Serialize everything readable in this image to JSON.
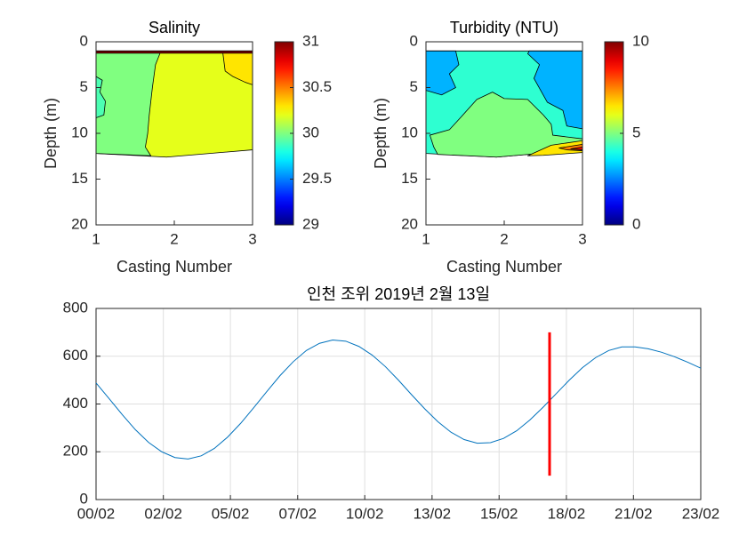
{
  "chart_data": [
    {
      "type": "contour",
      "title": "Salinity",
      "xlabel": "Casting Number",
      "ylabel": "Depth (m)",
      "xlim": [
        1,
        3
      ],
      "ylim": [
        0,
        20
      ],
      "xticks": [
        1,
        2,
        3
      ],
      "yticks": [
        0,
        5,
        10,
        15,
        20
      ],
      "y_reversed": true,
      "colormap": "jet",
      "clim": [
        29,
        31
      ],
      "colorbar_ticks": [
        29,
        29.5,
        30,
        30.5,
        31
      ],
      "regions": [
        {
          "level": 30.2,
          "x": [
            1,
            3,
            3,
            1.9,
            1
          ],
          "y": [
            1,
            1,
            11.8,
            12.6,
            12.2
          ]
        },
        {
          "level": 30,
          "x": [
            1,
            1.82,
            1.76,
            1.72,
            1.68,
            1.66,
            1.63,
            1.7,
            1
          ],
          "y": [
            1.2,
            1.2,
            2.5,
            5,
            8,
            10,
            11.5,
            12.45,
            12.2
          ]
        },
        {
          "level": 29.9,
          "x": [
            1,
            1.08,
            1.05,
            1.12,
            1.1,
            1
          ],
          "y": [
            3.8,
            4.2,
            5.5,
            6.5,
            8,
            8.3
          ]
        },
        {
          "level": 30.3,
          "x": [
            2.62,
            3,
            3,
            2.9,
            2.75,
            2.65
          ],
          "y": [
            1.2,
            1.2,
            4.7,
            4.4,
            3.8,
            3.2
          ]
        },
        {
          "level": 31,
          "x": [
            1,
            3,
            3,
            1
          ],
          "y": [
            1,
            1,
            1.25,
            1.25
          ]
        }
      ]
    },
    {
      "type": "contour",
      "title": "Turbidity (NTU)",
      "xlabel": "Casting Number",
      "ylabel": "Depth (m)",
      "xlim": [
        1,
        3
      ],
      "ylim": [
        0,
        20
      ],
      "xticks": [
        1,
        2,
        3
      ],
      "yticks": [
        0,
        5,
        10,
        15,
        20
      ],
      "y_reversed": true,
      "colormap": "jet",
      "clim": [
        0,
        10
      ],
      "colorbar_ticks": [
        0,
        5,
        10
      ],
      "regions": [
        {
          "level": 4.2,
          "x": [
            1,
            3,
            3,
            1.9,
            1
          ],
          "y": [
            1,
            1,
            11.8,
            12.6,
            12.2
          ]
        },
        {
          "level": 3,
          "x": [
            1,
            1.38,
            1.42,
            1.3,
            1.38,
            1.2,
            1
          ],
          "y": [
            1,
            1,
            2.5,
            3.5,
            5,
            5.8,
            5.3
          ]
        },
        {
          "level": 3,
          "x": [
            2.32,
            3,
            3,
            2.8,
            2.75,
            2.55,
            2.38,
            2.45,
            2.3
          ],
          "y": [
            1,
            1,
            9.5,
            9.2,
            7.5,
            6.6,
            4,
            2.5,
            1.3
          ]
        },
        {
          "level": 5,
          "x": [
            1.15,
            1.1,
            1.05,
            1.3,
            1.45,
            1.65,
            1.85,
            2,
            2.3,
            2.5,
            2.6,
            2.62,
            3,
            3,
            1.9
          ],
          "y": [
            12.3,
            11.5,
            10.2,
            9.6,
            8.2,
            6.3,
            5.5,
            6.2,
            6.3,
            8,
            9,
            10.2,
            10.6,
            11.8,
            12.6
          ]
        },
        {
          "level": 6.5,
          "x": [
            2.3,
            2.6,
            3,
            3,
            2.5
          ],
          "y": [
            12.45,
            11.3,
            10.8,
            12.1,
            12.4
          ]
        },
        {
          "level": 7.5,
          "x": [
            2.7,
            3,
            3,
            2.8
          ],
          "y": [
            11.6,
            11.2,
            11.9,
            11.8
          ]
        },
        {
          "level": 8.7,
          "x": [
            2.85,
            3,
            3
          ],
          "y": [
            11.7,
            11.5,
            11.8
          ]
        }
      ]
    },
    {
      "type": "line",
      "title": "인천 조위 2019년 2월 13일",
      "xlim": [
        0,
        23
      ],
      "ylim": [
        0,
        800
      ],
      "grid": true,
      "xticks": [
        {
          "value": 0,
          "label": "00/02"
        },
        {
          "value": 2.56,
          "label": "02/02"
        },
        {
          "value": 5.11,
          "label": "05/02"
        },
        {
          "value": 7.67,
          "label": "07/02"
        },
        {
          "value": 10.22,
          "label": "10/02"
        },
        {
          "value": 12.78,
          "label": "13/02"
        },
        {
          "value": 15.33,
          "label": "15/02"
        },
        {
          "value": 17.89,
          "label": "18/02"
        },
        {
          "value": 20.44,
          "label": "21/02"
        },
        {
          "value": 23,
          "label": "23/02"
        }
      ],
      "yticks": [
        0,
        200,
        400,
        600,
        800
      ],
      "series": [
        {
          "color": "#0072bd",
          "x": [
            0,
            0.5,
            1,
            1.5,
            2,
            2.5,
            3,
            3.5,
            4,
            4.5,
            5,
            5.5,
            6,
            6.5,
            7,
            7.5,
            8,
            8.5,
            9,
            9.5,
            10,
            10.5,
            11,
            11.5,
            12,
            12.5,
            13,
            13.5,
            14,
            14.5,
            15,
            15.5,
            16,
            16.5,
            17,
            17.5,
            18,
            18.5,
            19,
            19.5,
            20,
            20.5,
            21,
            21.5,
            22,
            22.5,
            23
          ],
          "values": [
            488,
            422,
            355,
            292,
            239,
            200,
            176,
            170,
            183,
            214,
            261,
            319,
            385,
            453,
            519,
            577,
            624,
            654,
            668,
            663,
            641,
            605,
            557,
            500,
            439,
            380,
            326,
            282,
            251,
            236,
            238,
            256,
            288,
            333,
            386,
            443,
            500,
            552,
            594,
            624,
            639,
            639,
            631,
            617,
            598,
            575,
            550
          ]
        },
        {
          "color": "#ff0000",
          "x": [
            17.25,
            17.25
          ],
          "values": [
            100,
            700
          ]
        }
      ]
    }
  ]
}
